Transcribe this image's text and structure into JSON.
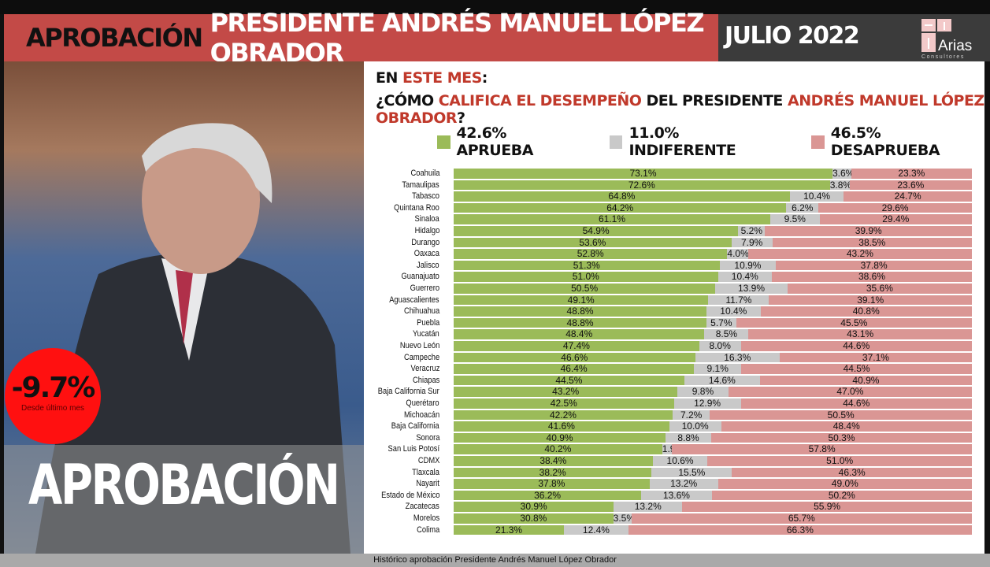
{
  "header": {
    "title_part1": "APROBACIÓN",
    "title_part2": "PRESIDENTE ANDRÉS MANUEL LÓPEZ OBRADOR",
    "month": "JULIO 2022",
    "logo_text": "Arias Consultores"
  },
  "photo": {
    "banner": "APROBACIÓN",
    "badge_value": "-9.7%",
    "badge_caption": "Desde último mes"
  },
  "question": {
    "line1_a": "EN ",
    "line1_b": "ESTE MES",
    ":": ":",
    "line2_a": "¿CÓMO ",
    "line2_b": "CALIFICA EL DESEMPEÑO",
    "line2_c": " DEL PRESIDENTE ",
    "line2_d": "ANDRÉS MANUEL LÓPEZ OBRADOR",
    "line2_e": "?"
  },
  "footer": "Histórico aprobación Presidente Andrés Manuel López Obrador",
  "colors": {
    "aprueba": "#9bbb59",
    "indiferente": "#c9c9c9",
    "desaprueba": "#da9694",
    "header_red": "#c34a47"
  },
  "chart_data": {
    "type": "bar",
    "orientation": "horizontal",
    "stacked": true,
    "xlim": [
      0,
      100
    ],
    "legend": [
      "42.6% APRUEBA",
      "11.0% INDIFERENTE",
      "46.5% DESAPRUEBA"
    ],
    "categories": [
      "Coahuila",
      "Tamaulipas",
      "Tabasco",
      "Quintana Roo",
      "Sinaloa",
      "Hidalgo",
      "Durango",
      "Oaxaca",
      "Jalisco",
      "Guanajuato",
      "Guerrero",
      "Aguascalientes",
      "Chihuahua",
      "Puebla",
      "Yucatán",
      "Nuevo León",
      "Campeche",
      "Veracruz",
      "Chiapas",
      "Baja California Sur",
      "Querétaro",
      "Michoacán",
      "Baja California",
      "Sonora",
      "San Luis Potosí",
      "CDMX",
      "Tlaxcala",
      "Nayarit",
      "Estado de México",
      "Zacatecas",
      "Morelos",
      "Colima"
    ],
    "series": [
      {
        "name": "APRUEBA",
        "values": [
          73.1,
          72.6,
          64.8,
          64.2,
          61.1,
          54.9,
          53.6,
          52.8,
          51.3,
          51.0,
          50.5,
          49.1,
          48.8,
          48.8,
          48.4,
          47.4,
          46.6,
          46.4,
          44.5,
          43.2,
          42.5,
          42.2,
          41.6,
          40.9,
          40.2,
          38.4,
          38.2,
          37.8,
          36.2,
          30.9,
          30.8,
          21.3
        ]
      },
      {
        "name": "INDIFERENTE",
        "values": [
          3.6,
          3.8,
          10.4,
          6.2,
          9.5,
          5.2,
          7.9,
          4.0,
          10.9,
          10.4,
          13.9,
          11.7,
          10.4,
          5.7,
          8.5,
          8.0,
          16.3,
          9.1,
          14.6,
          9.8,
          12.9,
          7.2,
          10.0,
          8.8,
          1.9,
          10.6,
          15.5,
          13.2,
          13.6,
          13.2,
          3.5,
          12.4
        ]
      },
      {
        "name": "DESAPRUEBA",
        "values": [
          23.3,
          23.6,
          24.7,
          29.6,
          29.4,
          39.9,
          38.5,
          43.2,
          37.8,
          38.6,
          35.6,
          39.1,
          40.8,
          45.5,
          43.1,
          44.6,
          37.1,
          44.5,
          40.9,
          47.0,
          44.6,
          50.5,
          48.4,
          50.3,
          57.8,
          51.0,
          46.3,
          49.0,
          50.2,
          55.9,
          65.7,
          66.3
        ]
      }
    ]
  }
}
